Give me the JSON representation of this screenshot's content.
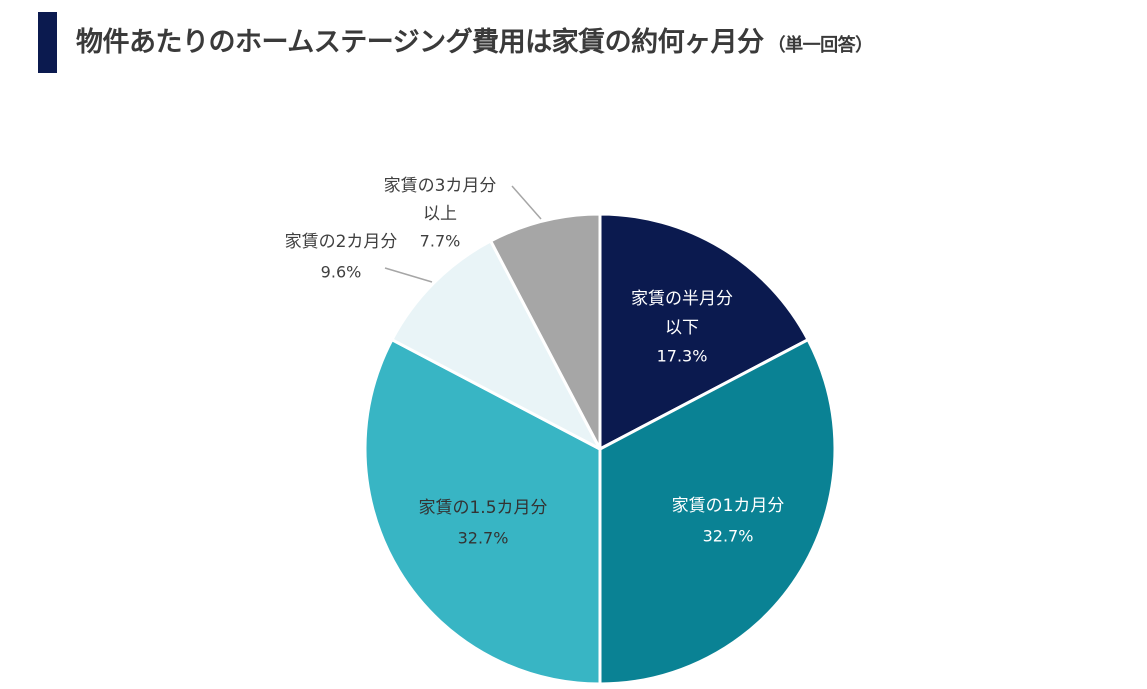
{
  "header": {
    "title": "物件あたりのホームステージング費用は家賃の約何ヶ月分",
    "subtitle": "（単一回答）"
  },
  "chart_data": {
    "type": "pie",
    "start_angle_deg": 0,
    "direction": "clockwise",
    "slices": [
      {
        "label": [
          "家賃の半月分",
          "以下"
        ],
        "value": 17.3,
        "value_label": "17.3%",
        "color": "#0b1a4f",
        "text_color": "#ffffff",
        "label_position": "inside"
      },
      {
        "label": [
          "家賃の1カ月分"
        ],
        "value": 32.7,
        "value_label": "32.7%",
        "color": "#0a8294",
        "text_color": "#ffffff",
        "label_position": "inside"
      },
      {
        "label": [
          "家賃の1.5カ月分"
        ],
        "value": 32.7,
        "value_label": "32.7%",
        "color": "#38b5c4",
        "text_color": "#333333",
        "label_position": "inside"
      },
      {
        "label": [
          "家賃の2カ月分"
        ],
        "value": 9.6,
        "value_label": "9.6%",
        "color": "#e9f4f7",
        "text_color": "#333333",
        "label_position": "outside"
      },
      {
        "label": [
          "家賃の3カ月分",
          "以上"
        ],
        "value": 7.7,
        "value_label": "7.7%",
        "color": "#a6a6a6",
        "text_color": "#333333",
        "label_position": "outside"
      }
    ]
  }
}
